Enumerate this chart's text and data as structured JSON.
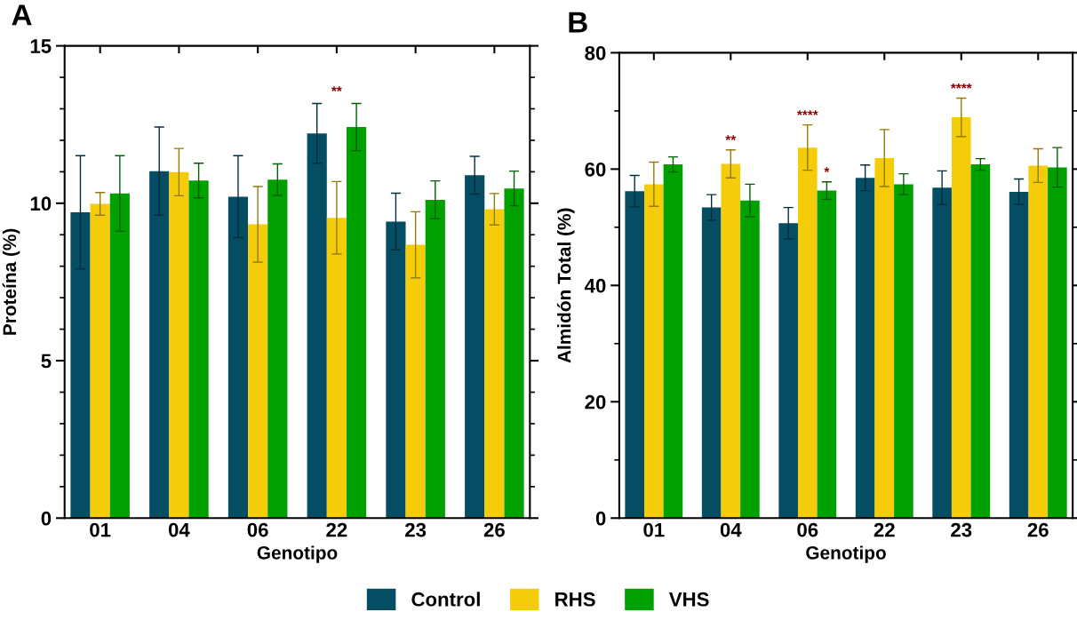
{
  "chart_data": [
    {
      "type": "bar",
      "title": "A",
      "xlabel": "Genotipo",
      "ylabel": "Proteína (%)",
      "categories": [
        "01",
        "04",
        "06",
        "22",
        "23",
        "26"
      ],
      "ylim": [
        0,
        15
      ],
      "yticks": [
        0,
        5,
        10,
        15
      ],
      "legend": "bottom",
      "series": [
        {
          "name": "Control",
          "color": "#044d62",
          "values": [
            9.71,
            11.02,
            10.21,
            12.22,
            9.42,
            10.89
          ],
          "errors": [
            1.8,
            1.4,
            1.3,
            0.95,
            0.9,
            0.6
          ]
        },
        {
          "name": "RHS",
          "color": "#f5cc0a",
          "values": [
            9.98,
            10.99,
            9.33,
            9.54,
            8.68,
            9.81
          ],
          "errors": [
            0.36,
            0.75,
            1.2,
            1.15,
            1.05,
            0.5
          ]
        },
        {
          "name": "VHS",
          "color": "#00a000",
          "values": [
            10.31,
            10.72,
            10.75,
            12.42,
            10.11,
            10.47
          ],
          "errors": [
            1.2,
            0.55,
            0.5,
            0.75,
            0.6,
            0.55
          ]
        }
      ],
      "annotations": [
        "**"
      ]
    },
    {
      "type": "bar",
      "title": "B",
      "xlabel": "Genotipo",
      "ylabel": "Almidón Total (%)",
      "categories": [
        "01",
        "04",
        "06",
        "22",
        "23",
        "26"
      ],
      "ylim": [
        0,
        80
      ],
      "yticks": [
        0,
        20,
        40,
        60,
        80
      ],
      "legend": "bottom",
      "series": [
        {
          "name": "Control",
          "color": "#044d62",
          "values": [
            56.2,
            53.4,
            50.7,
            58.5,
            56.8,
            56.1
          ],
          "errors": [
            2.7,
            2.2,
            2.7,
            2.2,
            2.9,
            2.2
          ]
        },
        {
          "name": "RHS",
          "color": "#f5cc0a",
          "values": [
            57.4,
            60.9,
            63.7,
            61.9,
            68.9,
            60.6
          ],
          "errors": [
            3.8,
            2.4,
            3.9,
            4.9,
            3.3,
            2.9
          ],
          "value_labels": [
            null,
            "**",
            "****",
            null,
            "****",
            null
          ]
        },
        {
          "name": "VHS",
          "color": "#00a000",
          "values": [
            60.8,
            54.6,
            56.3,
            57.4,
            60.8,
            60.3
          ],
          "errors": [
            1.3,
            2.8,
            1.5,
            1.8,
            1.0,
            3.4
          ],
          "value_labels": [
            null,
            null,
            "*",
            null,
            null,
            null
          ]
        }
      ]
    }
  ]
}
